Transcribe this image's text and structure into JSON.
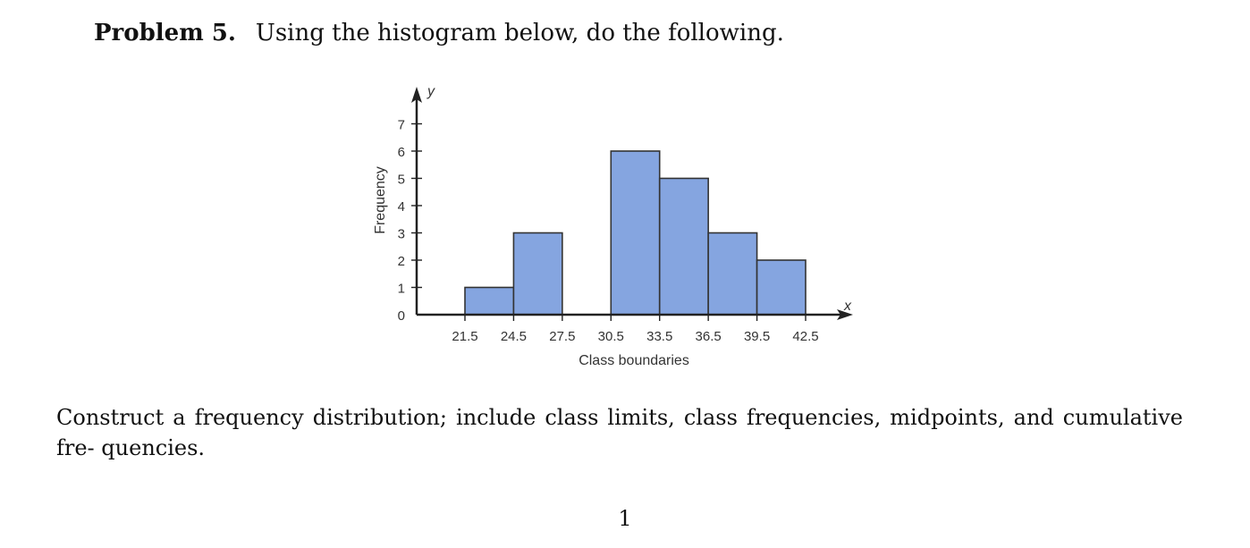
{
  "problem": {
    "label": "Problem 5.",
    "prompt": "Using the histogram below, do the following."
  },
  "chart_data": {
    "type": "bar",
    "subtype": "histogram",
    "bins": [
      {
        "from": 21.5,
        "to": 24.5,
        "frequency": 1
      },
      {
        "from": 24.5,
        "to": 27.5,
        "frequency": 3
      },
      {
        "from": 27.5,
        "to": 30.5,
        "frequency": 0
      },
      {
        "from": 30.5,
        "to": 33.5,
        "frequency": 6
      },
      {
        "from": 33.5,
        "to": 36.5,
        "frequency": 5
      },
      {
        "from": 36.5,
        "to": 39.5,
        "frequency": 3
      },
      {
        "from": 39.5,
        "to": 42.5,
        "frequency": 2
      }
    ],
    "x_ticks": [
      "21.5",
      "24.5",
      "27.5",
      "30.5",
      "33.5",
      "36.5",
      "39.5",
      "42.5"
    ],
    "y_ticks": [
      "0",
      "1",
      "2",
      "3",
      "4",
      "5",
      "6",
      "7"
    ],
    "xlabel": "Class boundaries",
    "ylabel": "Frequency",
    "x_axis_letter": "x",
    "y_axis_letter": "y",
    "xlim": [
      21.5,
      42.5
    ],
    "ylim": [
      0,
      7
    ],
    "grid": false,
    "bar_color": "#85a5e0",
    "bar_edge_color": "#333333"
  },
  "instruction": "Construct a frequency distribution; include class limits, class frequencies, midpoints, and cumulative fre- quencies.",
  "page_number": "1"
}
